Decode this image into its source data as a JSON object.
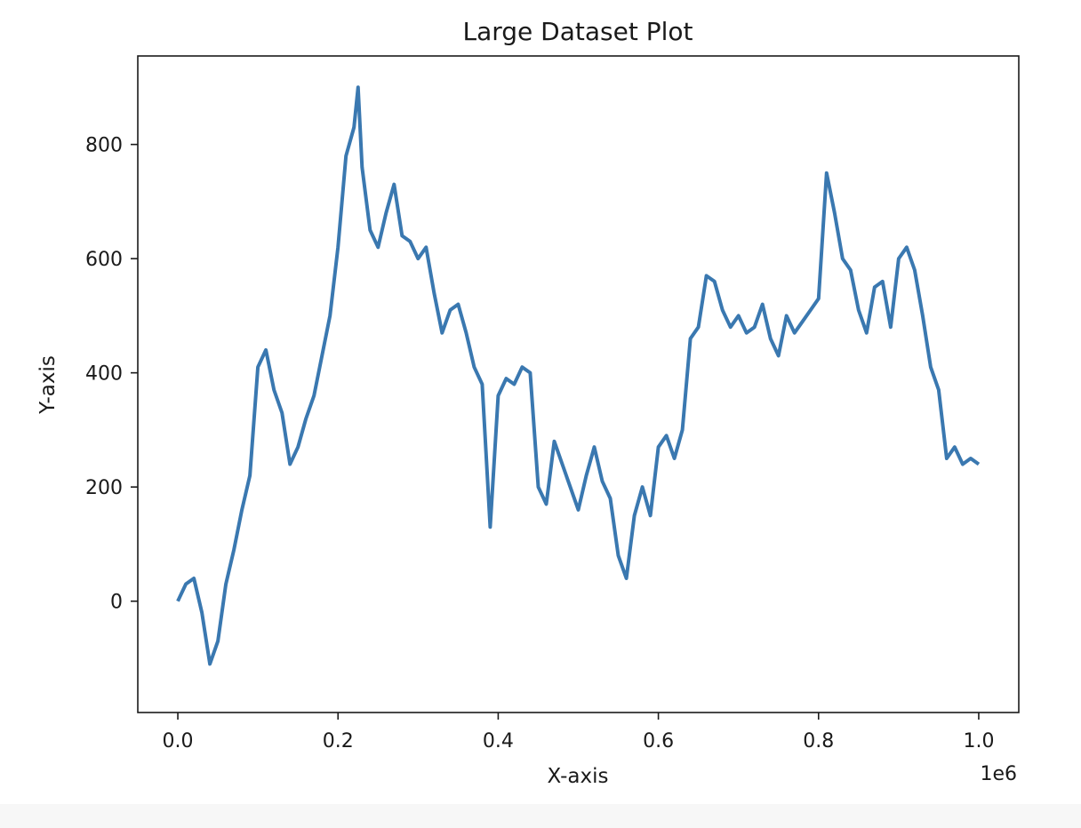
{
  "chart_data": {
    "type": "line",
    "title": "Large Dataset Plot",
    "xlabel": "X-axis",
    "ylabel": "Y-axis",
    "x_offset_text": "1e6",
    "xlim": [
      -0.05,
      1.05
    ],
    "ylim": [
      -195,
      955
    ],
    "x_ticks": [
      0.0,
      0.2,
      0.4,
      0.6,
      0.8,
      1.0
    ],
    "x_tick_labels": [
      "0.0",
      "0.2",
      "0.4",
      "0.6",
      "0.8",
      "1.0"
    ],
    "y_ticks": [
      0,
      200,
      400,
      600,
      800
    ],
    "y_tick_labels": [
      "0",
      "200",
      "400",
      "600",
      "800"
    ],
    "grid": false,
    "line_color": "#3a78b0",
    "series": [
      {
        "x": [
          0.0,
          0.01,
          0.02,
          0.03,
          0.04,
          0.05,
          0.06,
          0.07,
          0.08,
          0.09,
          0.1,
          0.11,
          0.12,
          0.13,
          0.14,
          0.15,
          0.16,
          0.17,
          0.18,
          0.19,
          0.2,
          0.21,
          0.22,
          0.225,
          0.23,
          0.24,
          0.25,
          0.26,
          0.27,
          0.28,
          0.29,
          0.3,
          0.31,
          0.32,
          0.33,
          0.34,
          0.35,
          0.36,
          0.37,
          0.38,
          0.39,
          0.4,
          0.41,
          0.42,
          0.43,
          0.44,
          0.45,
          0.46,
          0.47,
          0.48,
          0.49,
          0.5,
          0.51,
          0.52,
          0.53,
          0.54,
          0.55,
          0.56,
          0.57,
          0.58,
          0.59,
          0.6,
          0.61,
          0.62,
          0.63,
          0.64,
          0.65,
          0.66,
          0.67,
          0.68,
          0.69,
          0.7,
          0.71,
          0.72,
          0.73,
          0.74,
          0.75,
          0.76,
          0.77,
          0.78,
          0.79,
          0.8,
          0.81,
          0.82,
          0.83,
          0.84,
          0.85,
          0.86,
          0.87,
          0.88,
          0.89,
          0.9,
          0.91,
          0.92,
          0.93,
          0.94,
          0.95,
          0.96,
          0.97,
          0.98,
          0.99,
          1.0
        ],
        "y": [
          0,
          30,
          40,
          -20,
          -110,
          -70,
          30,
          90,
          160,
          220,
          410,
          440,
          370,
          330,
          240,
          270,
          320,
          360,
          430,
          500,
          620,
          780,
          830,
          900,
          760,
          650,
          620,
          680,
          730,
          640,
          630,
          600,
          620,
          540,
          470,
          510,
          520,
          470,
          410,
          380,
          130,
          360,
          390,
          380,
          410,
          400,
          200,
          170,
          280,
          240,
          200,
          160,
          220,
          270,
          210,
          180,
          80,
          40,
          150,
          200,
          150,
          270,
          290,
          250,
          300,
          460,
          480,
          570,
          560,
          510,
          480,
          500,
          470,
          480,
          520,
          460,
          430,
          500,
          470,
          490,
          510,
          530,
          750,
          680,
          600,
          580,
          510,
          470,
          550,
          560,
          480,
          600,
          620,
          580,
          500,
          410,
          370,
          250,
          270,
          240,
          250,
          240
        ]
      }
    ]
  }
}
